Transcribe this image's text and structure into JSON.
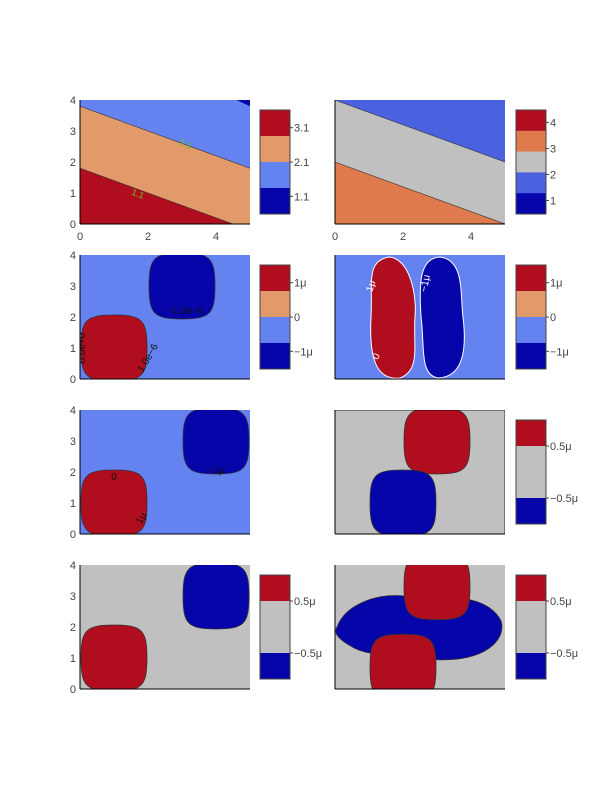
{
  "colors": {
    "dark_red": "#b00d1f",
    "orange": "#e39a6a",
    "orange2": "#df7a4c",
    "light_blue": "#6583f0",
    "mid_blue": "#4a62e0",
    "dark_blue": "#0505aa",
    "gray": "#c0c0c0",
    "label_green": "#6ac80a"
  },
  "chart_data": [
    {
      "panel": 1,
      "type": "contour",
      "fill": "bands",
      "x_ticks": [
        "0",
        "2",
        "4"
      ],
      "y_ticks": [
        "0",
        "1",
        "2",
        "3",
        "4"
      ],
      "xlim": [
        0,
        5
      ],
      "ylim": [
        0,
        4
      ],
      "levels": [
        1.1,
        2.1,
        3.1
      ],
      "contour_labels": [
        "1.1",
        "2.1"
      ],
      "colorbar_ticks": [
        "3.1",
        "2.1",
        "1.1"
      ]
    },
    {
      "panel": 2,
      "type": "contour",
      "fill": "bands",
      "x_ticks": [
        "0",
        "2",
        "4"
      ],
      "y_ticks": [],
      "xlim": [
        0,
        5
      ],
      "ylim": [
        0,
        4
      ],
      "colorbar_ticks": [
        "4",
        "3",
        "2",
        "1"
      ]
    },
    {
      "panel": 3,
      "type": "contour",
      "fill": "blobs",
      "x_ticks": [],
      "y_ticks": [
        "0",
        "1",
        "2",
        "3",
        "4"
      ],
      "xlim": [
        0,
        5
      ],
      "ylim": [
        0,
        4
      ],
      "contour_labels": [
        "−1.0e−6",
        "0.0e+0",
        "1.0e−6"
      ],
      "colorbar_ticks": [
        "1μ",
        "0",
        "−1μ"
      ]
    },
    {
      "panel": 4,
      "type": "contour",
      "fill": "vertical lobes",
      "xlim": [
        0,
        5
      ],
      "ylim": [
        0,
        4
      ],
      "contour_labels": [
        "1μ",
        "−1μ",
        "0"
      ],
      "colorbar_ticks": [
        "1μ",
        "0",
        "−1μ"
      ]
    },
    {
      "panel": 5,
      "type": "contour",
      "fill": "blobs",
      "y_ticks": [
        "0",
        "1",
        "2",
        "3",
        "4"
      ],
      "xlim": [
        0,
        5
      ],
      "ylim": [
        0,
        4
      ],
      "contour_labels": [
        "0",
        "−1μ",
        "1μ"
      ]
    },
    {
      "panel": 6,
      "type": "contour",
      "fill": "blobs",
      "xlim": [
        0,
        5
      ],
      "ylim": [
        0,
        4
      ],
      "colorbar_ticks": [
        "0.5μ",
        "−0.5μ"
      ]
    },
    {
      "panel": 7,
      "type": "contour",
      "fill": "blobs",
      "y_ticks": [
        "0",
        "1",
        "2",
        "3",
        "4"
      ],
      "xlim": [
        0,
        5
      ],
      "ylim": [
        0,
        4
      ],
      "colorbar_ticks": [
        "0.5μ",
        "−0.5μ"
      ]
    },
    {
      "panel": 8,
      "type": "contour",
      "fill": "blobs",
      "xlim": [
        0,
        5
      ],
      "ylim": [
        0,
        4
      ],
      "colorbar_ticks": [
        "0.5μ",
        "−0.5μ"
      ]
    }
  ]
}
